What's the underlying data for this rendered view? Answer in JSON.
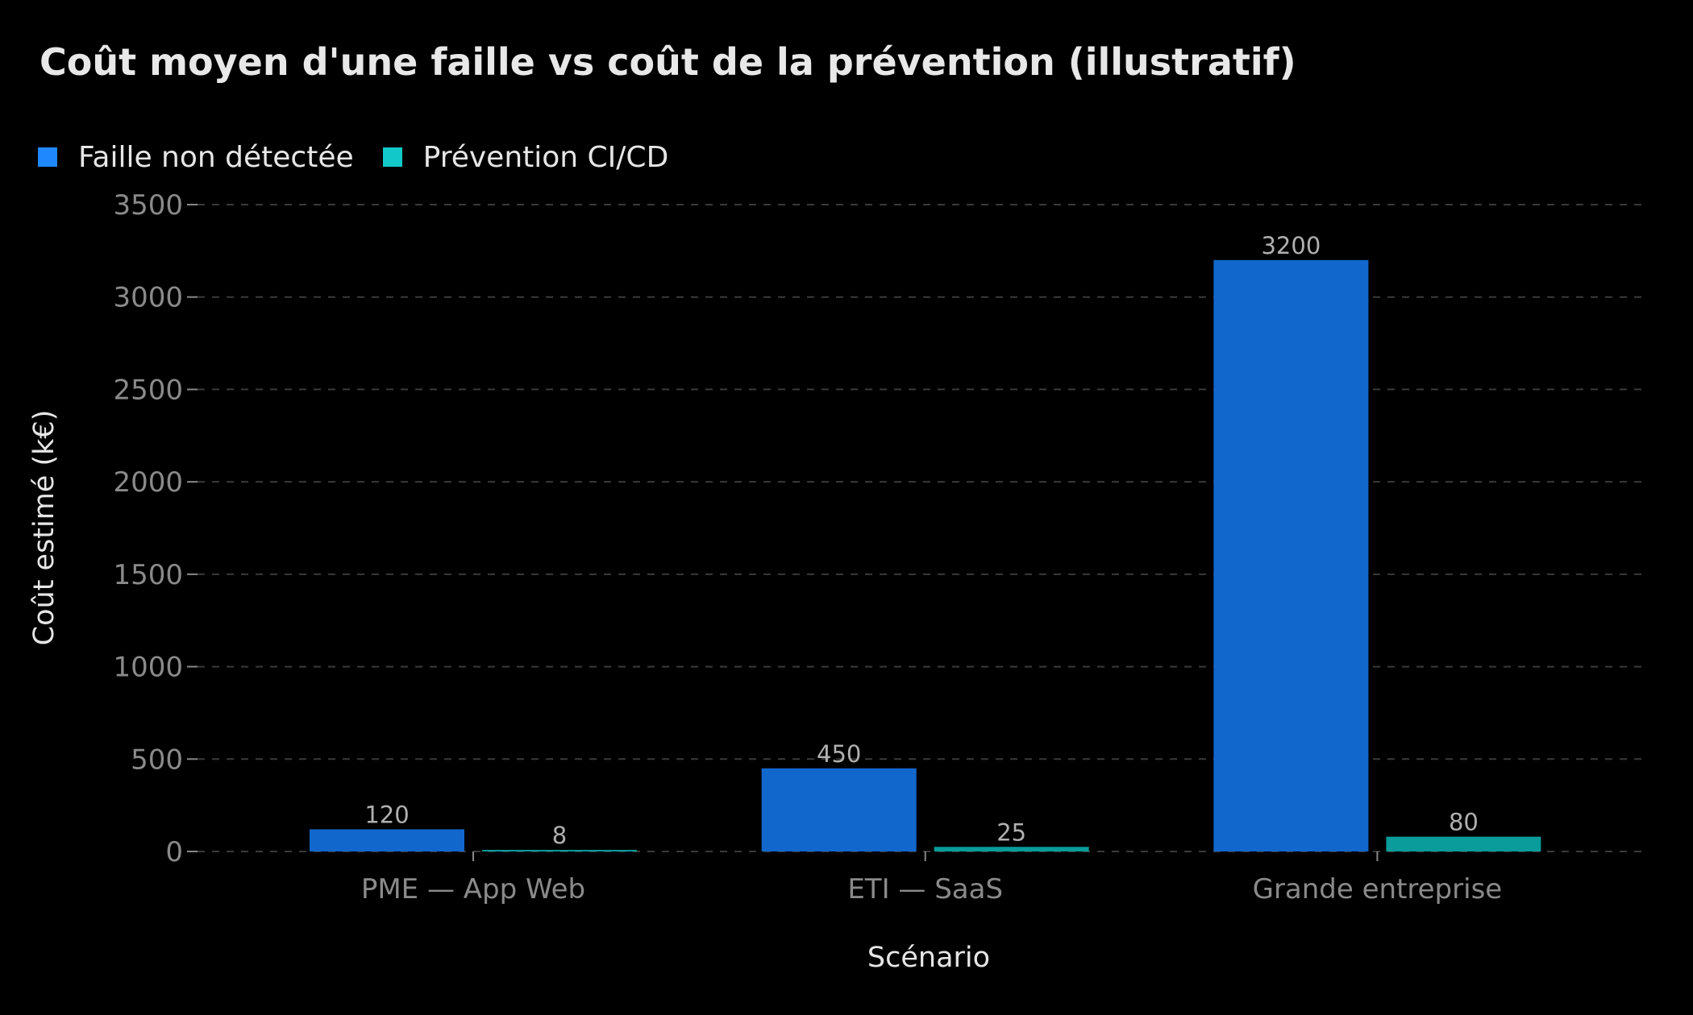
{
  "chart_data": {
    "type": "bar",
    "title": "Coût moyen d'une faille vs coût de la prévention (illustratif)",
    "xlabel": "Scénario",
    "ylabel": "Coût estimé (k€)",
    "categories": [
      "PME — App Web",
      "ETI — SaaS",
      "Grande entreprise"
    ],
    "series": [
      {
        "name": "Faille non détectée",
        "values": [
          120,
          450,
          3200
        ],
        "color": "#1f88ff",
        "bar_color": "#1167cc"
      },
      {
        "name": "Prévention CI/CD",
        "values": [
          8,
          25,
          80
        ],
        "color": "#12c8c8",
        "bar_color": "#0a9b9b"
      }
    ],
    "ylim": [
      0,
      3500
    ],
    "yticks": [
      0,
      500,
      1000,
      1500,
      2000,
      2500,
      3000,
      3500
    ],
    "grid": true,
    "legend_position": "top-left",
    "data_labels": true
  }
}
